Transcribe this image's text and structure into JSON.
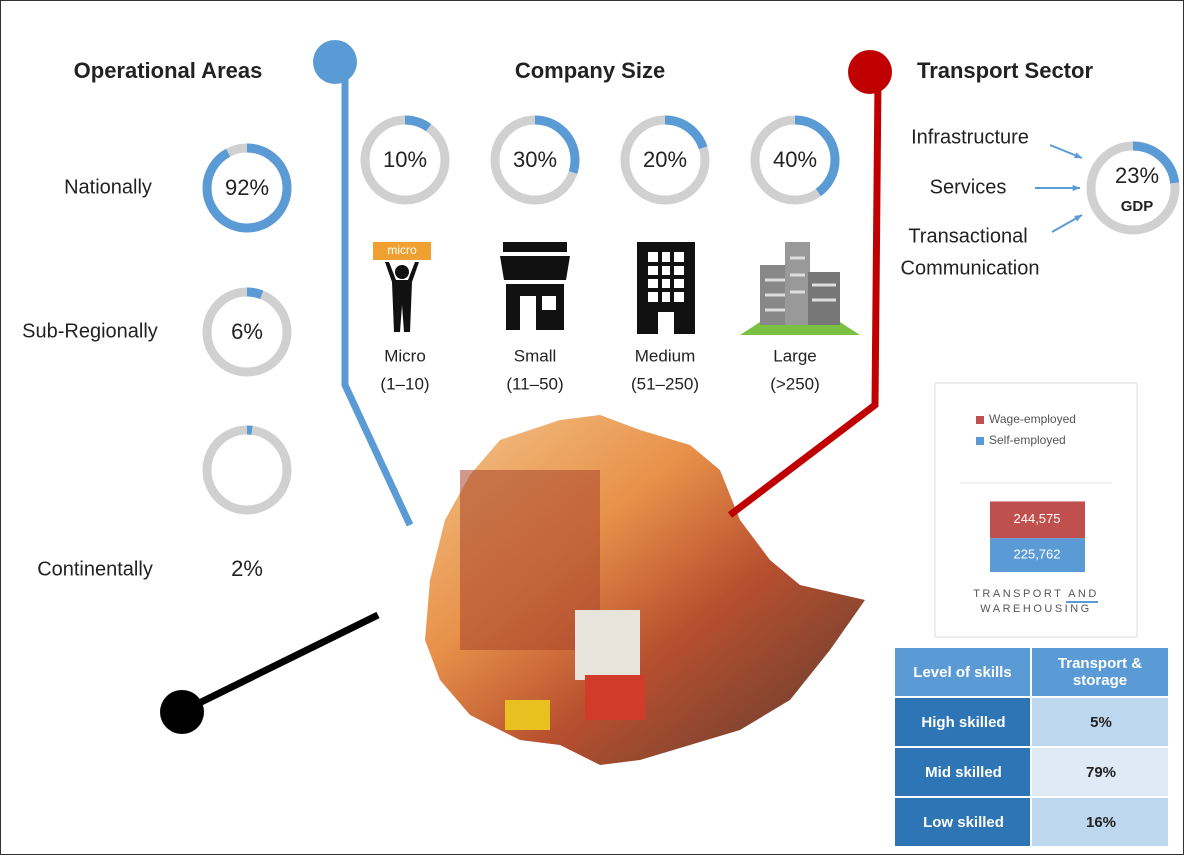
{
  "operational_areas": {
    "title": "Operational Areas",
    "items": [
      {
        "name": "Nationally",
        "value": 92,
        "label": "92%"
      },
      {
        "name": "Sub-Regionally",
        "value": 6,
        "label": "6%"
      },
      {
        "name": "Continentally",
        "value": 2,
        "label": "2%"
      }
    ]
  },
  "company_size": {
    "title": "Company Size",
    "badge": "micro",
    "items": [
      {
        "value": 10,
        "label": "10%",
        "name": "Micro",
        "range": "(1–10)"
      },
      {
        "value": 30,
        "label": "30%",
        "name": "Small",
        "range": "(11–50)"
      },
      {
        "value": 20,
        "label": "20%",
        "name": "Medium",
        "range": "(51–250)"
      },
      {
        "value": 40,
        "label": "40%",
        "name": "Large",
        "range": "(>250)"
      }
    ]
  },
  "transport_sector": {
    "title": "Transport Sector",
    "inputs": [
      "Infrastructure",
      "Services",
      "Transactional",
      "Communication"
    ],
    "gdp": {
      "value": 23,
      "label": "23%",
      "caption": "GDP"
    }
  },
  "employment": {
    "category": "TRANSPORT AND WAREHOUSING",
    "series": [
      {
        "name": "Wage-employed",
        "color": "#c0504d",
        "value": 244575,
        "value_label": "244,575"
      },
      {
        "name": "Self-employed",
        "color": "#5b9bd5",
        "value": 225762,
        "value_label": "225,762"
      }
    ]
  },
  "skills_table": {
    "header": [
      "Level of skills",
      "Transport & storage"
    ],
    "rows": [
      [
        "High skilled",
        "5%"
      ],
      [
        "Mid skilled",
        "79%"
      ],
      [
        "Low skilled",
        "16%"
      ]
    ]
  }
}
